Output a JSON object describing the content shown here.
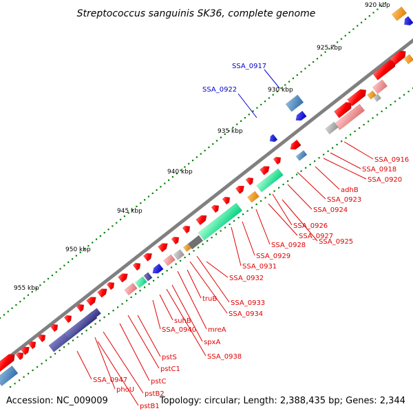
{
  "title": "Streptococcus sanguinis SK36, complete genome",
  "footer": {
    "accession": "Accession: NC_009009",
    "topology": "Topology: circular; Length: 2,388,435 bp; Genes: 2,344"
  },
  "scale_labels": [
    "920 kbp",
    "925 kbp",
    "930 kbp",
    "935 kbp",
    "940 kbp",
    "945 kbp",
    "950 kbp",
    "955 kbp"
  ],
  "gene_labels_blue": [
    "SSA_0917",
    "SSA_0922"
  ],
  "gene_labels_red": [
    "SSA_0916",
    "SSA_0918",
    "SSA_0920",
    "adhB",
    "SSA_0923",
    "SSA_0924",
    "SSA_0926",
    "SSA_0927",
    "SSA_0925",
    "SSA_0928",
    "SSA_0929",
    "SSA_0931",
    "SSA_0932",
    "truB",
    "SSA_0933",
    "SSA_0934",
    "suhB",
    "SSA_0940",
    "mreA",
    "spxA",
    "SSA_0938",
    "pstS",
    "pstC1",
    "pstC",
    "SSA_0947",
    "phoU",
    "pstB2",
    "pstB1"
  ],
  "colors": {
    "forward_gene": "#ff0000",
    "reverse_gene": "#0000ff",
    "backbone": "#808080",
    "tick": "#008000",
    "label_red": "#e00000",
    "label_blue": "#0000cc"
  }
}
